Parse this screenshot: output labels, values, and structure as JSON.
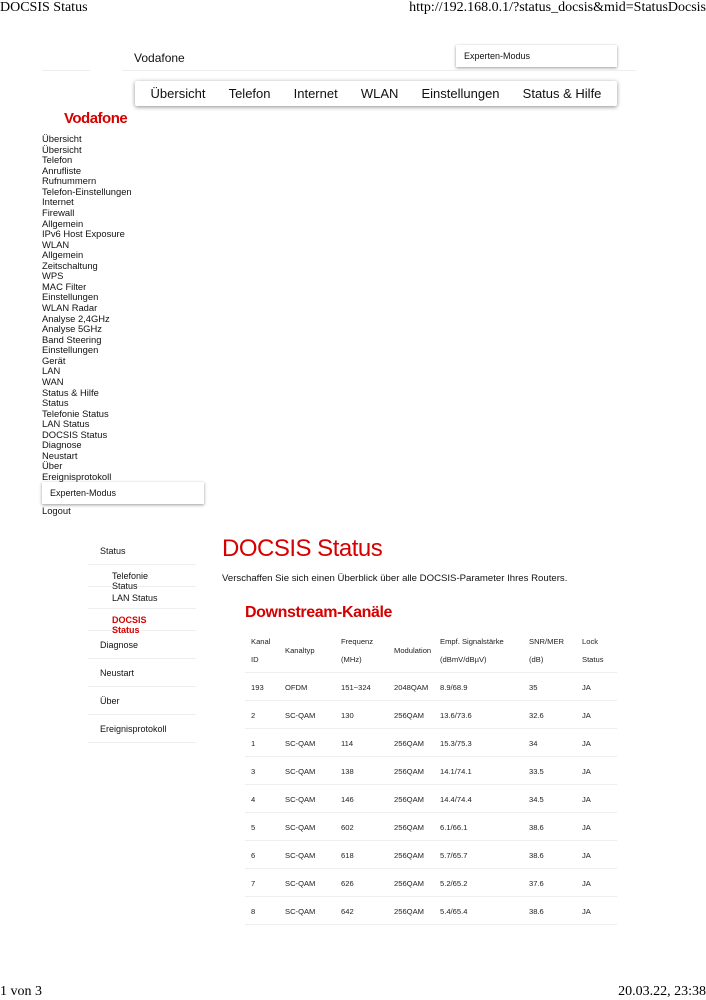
{
  "print_header": {
    "title": "DOCSIS Status",
    "url": "http://192.168.0.1/?status_docsis&mid=StatusDocsis"
  },
  "print_footer": {
    "page": "1 von 3",
    "datetime": "20.03.22, 23:38"
  },
  "header": {
    "brand": "Vodafone",
    "expert_mode": "Experten-Modus"
  },
  "topnav": [
    "Übersicht",
    "Telefon",
    "Internet",
    "WLAN",
    "Einstellungen",
    "Status & Hilfe"
  ],
  "logo_text": "Vodafone",
  "left_menu": [
    "Übersicht",
    "Übersicht",
    "Telefon",
    "Anrufliste",
    "Rufnummern",
    "Telefon-Einstellungen",
    "Internet",
    "Firewall",
    "Allgemein",
    "IPv6 Host Exposure",
    "WLAN",
    "Allgemein",
    "Zeitschaltung",
    "WPS",
    "MAC Filter",
    "Einstellungen",
    "WLAN Radar",
    "Analyse 2,4GHz",
    "Analyse 5GHz",
    "Band Steering",
    "Einstellungen",
    "Gerät",
    "LAN",
    "WAN",
    "Status & Hilfe",
    "Status",
    "Telefonie Status",
    "LAN Status",
    "DOCSIS Status",
    "Diagnose",
    "Neustart",
    "Über",
    "Ereignisprotokoll"
  ],
  "left_expert_mode": "Experten-Modus",
  "logout": "Logout",
  "sidebar": {
    "status": "Status",
    "sub": [
      "Telefonie Status",
      "LAN Status",
      "DOCSIS Status"
    ],
    "items": [
      "Diagnose",
      "Neustart",
      "Über",
      "Ereignisprotokoll"
    ],
    "active": "DOCSIS Status"
  },
  "main": {
    "title": "DOCSIS Status",
    "description": "Verschaffen Sie sich einen Überblick über alle DOCSIS-Parameter Ihres Routers.",
    "section": "Downstream-Kanäle"
  },
  "table": {
    "headers": [
      [
        "Kanal",
        "ID"
      ],
      [
        "Kanaltyp"
      ],
      [
        "Frequenz",
        "(MHz)"
      ],
      [
        "Modulation"
      ],
      [
        "Empf. Signalstärke",
        "(dBmV/dBµV)"
      ],
      [
        "SNR/MER",
        "(dB)"
      ],
      [
        "Lock",
        "Status"
      ]
    ],
    "rows": [
      [
        "193",
        "OFDM",
        "151~324",
        "2048QAM",
        "8.9/68.9",
        "35",
        "JA"
      ],
      [
        "2",
        "SC-QAM",
        "130",
        "256QAM",
        "13.6/73.6",
        "32.6",
        "JA"
      ],
      [
        "1",
        "SC-QAM",
        "114",
        "256QAM",
        "15.3/75.3",
        "34",
        "JA"
      ],
      [
        "3",
        "SC-QAM",
        "138",
        "256QAM",
        "14.1/74.1",
        "33.5",
        "JA"
      ],
      [
        "4",
        "SC-QAM",
        "146",
        "256QAM",
        "14.4/74.4",
        "34.5",
        "JA"
      ],
      [
        "5",
        "SC-QAM",
        "602",
        "256QAM",
        "6.1/66.1",
        "38.6",
        "JA"
      ],
      [
        "6",
        "SC-QAM",
        "618",
        "256QAM",
        "5.7/65.7",
        "38.6",
        "JA"
      ],
      [
        "7",
        "SC-QAM",
        "626",
        "256QAM",
        "5.2/65.2",
        "37.6",
        "JA"
      ],
      [
        "8",
        "SC-QAM",
        "642",
        "256QAM",
        "5.4/65.4",
        "38.6",
        "JA"
      ]
    ]
  },
  "colors": {
    "accent": "#d50000"
  }
}
